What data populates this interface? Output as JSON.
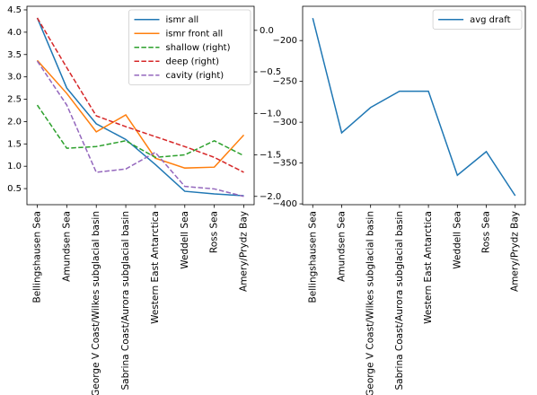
{
  "chart_data": [
    {
      "type": "line",
      "categories": [
        "Bellingshausen Sea",
        "Amundsen Sea",
        "George V Coast/Wilkes subglacial basin",
        "Sabrina Coast/Aurora subglacial basin",
        "Western East Antarctica",
        "Weddell Sea",
        "Ross Sea",
        "Amery/Prydz Bay"
      ],
      "ylim": [
        0.14,
        4.58
      ],
      "yticks": [
        0.5,
        {
          "value": 1,
          "label": "1.0"
        },
        1.5,
        {
          "value": 2,
          "label": "2.0"
        },
        2.5,
        {
          "value": 3,
          "label": "3.0"
        },
        3.5,
        {
          "value": 4,
          "label": "4.0"
        },
        4.5
      ],
      "y2lim": [
        -2.1,
        0.29
      ],
      "y2ticks": [
        {
          "value": 0,
          "label": "0.0"
        },
        {
          "value": -0.5,
          "label": "−0.5"
        },
        {
          "value": -1,
          "label": "−1.0"
        },
        {
          "value": -1.5,
          "label": "−1.5"
        },
        {
          "value": -2,
          "label": "−2.0"
        }
      ],
      "legend": "upper right",
      "series": [
        {
          "name": "ismr all",
          "color": "#1f77b4",
          "values": [
            4.32,
            2.75,
            1.95,
            1.6,
            1.04,
            0.44,
            0.38,
            0.34
          ]
        },
        {
          "name": "ismr front all",
          "color": "#ff7f0e",
          "values": [
            3.37,
            2.63,
            1.77,
            2.15,
            1.18,
            0.96,
            0.98,
            1.7
          ]
        },
        {
          "name": "shallow (right)",
          "color": "#2ca02c",
          "dashed": true,
          "axis": "y2",
          "values": [
            -0.9,
            -1.42,
            -1.4,
            -1.33,
            -1.53,
            -1.5,
            -1.33,
            -1.51
          ]
        },
        {
          "name": "deep (right)",
          "color": "#d62728",
          "dashed": true,
          "axis": "y2",
          "values": [
            0.15,
            -0.45,
            -1.03,
            -1.16,
            -1.28,
            -1.4,
            -1.53,
            -1.71
          ]
        },
        {
          "name": "cavity (right)",
          "color": "#9467bd",
          "dashed": true,
          "axis": "y2",
          "values": [
            -0.37,
            -0.9,
            -1.71,
            -1.67,
            -1.47,
            -1.88,
            -1.91,
            -2.0
          ]
        }
      ]
    },
    {
      "type": "line",
      "categories": [
        "Bellingshausen Sea",
        "Amundsen Sea",
        "George V Coast/Wilkes subglacial basin",
        "Sabrina Coast/Aurora subglacial basin",
        "Western East Antarctica",
        "Weddell Sea",
        "Ross Sea",
        "Amery/Prydz Bay"
      ],
      "ylim": [
        -401,
        -158
      ],
      "yticks": [
        {
          "value": -200,
          "label": "−200"
        },
        {
          "value": -250,
          "label": "−250"
        },
        {
          "value": -300,
          "label": "−300"
        },
        {
          "value": -350,
          "label": "−350"
        },
        {
          "value": -400,
          "label": "−400"
        }
      ],
      "legend": "upper right",
      "series": [
        {
          "name": "avg draft",
          "color": "#1f77b4",
          "values": [
            -172.5,
            -313,
            -282,
            -262,
            -262,
            -365,
            -336,
            -390
          ]
        }
      ]
    }
  ]
}
